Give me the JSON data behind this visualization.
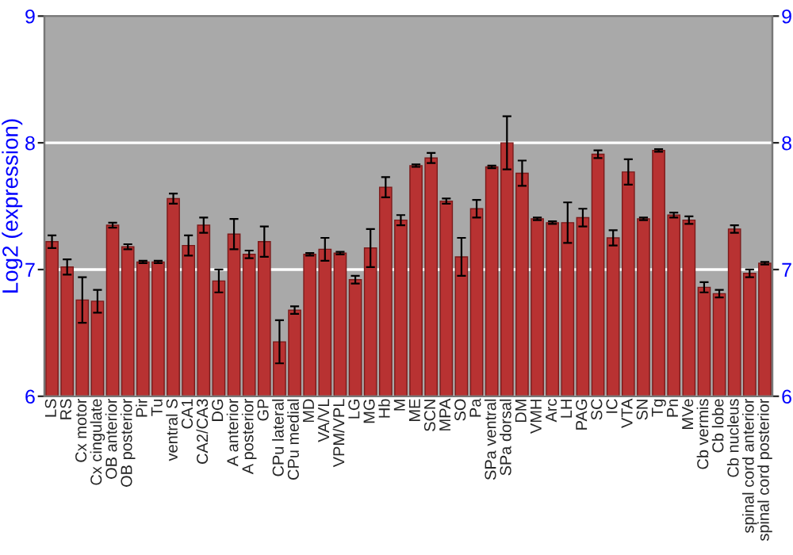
{
  "chart_data": {
    "type": "bar",
    "ylabel": "Log2 (expression)",
    "categories": [
      "LS",
      "RS",
      "Cx motor",
      "Cx cingulate",
      "OB anterior",
      "OB posterior",
      "Pir",
      "Tu",
      "ventral S",
      "CA1",
      "CA2/CA3",
      "DG",
      "A anterior",
      "A posterior",
      "GP",
      "CPu lateral",
      "CPu medial",
      "MD",
      "VA/VL",
      "VPM/VPL",
      "LG",
      "MG",
      "Hb",
      "M",
      "ME",
      "SCN",
      "MPA",
      "SO",
      "Pa",
      "SPa ventral",
      "SPa dorsal",
      "DM",
      "VMH",
      "Arc",
      "LH",
      "PAG",
      "SC",
      "IC",
      "VTA",
      "SN",
      "Tg",
      "Pn",
      "MVe",
      "Cb vermis",
      "Cb lobe",
      "Cb nucleus",
      "spinal cord anterior",
      "spinal cord posterior"
    ],
    "values": [
      7.22,
      7.02,
      6.76,
      6.75,
      7.35,
      7.18,
      7.06,
      7.06,
      7.56,
      7.19,
      7.35,
      6.91,
      7.28,
      7.12,
      7.22,
      6.43,
      6.68,
      7.12,
      7.16,
      7.13,
      6.92,
      7.17,
      7.65,
      7.39,
      7.82,
      7.88,
      7.54,
      7.1,
      7.48,
      7.81,
      8.0,
      7.76,
      7.4,
      7.37,
      7.37,
      7.41,
      7.91,
      7.25,
      7.77,
      7.4,
      7.94,
      7.43,
      7.39,
      6.86,
      6.81,
      7.32,
      6.97,
      7.05
    ],
    "errors": [
      0.05,
      0.06,
      0.18,
      0.09,
      0.02,
      0.02,
      0.01,
      0.01,
      0.04,
      0.08,
      0.06,
      0.09,
      0.12,
      0.03,
      0.12,
      0.17,
      0.03,
      0.01,
      0.09,
      0.01,
      0.03,
      0.15,
      0.08,
      0.04,
      0.01,
      0.04,
      0.02,
      0.15,
      0.07,
      0.01,
      0.21,
      0.1,
      0.01,
      0.01,
      0.16,
      0.07,
      0.03,
      0.06,
      0.1,
      0.01,
      0.01,
      0.02,
      0.03,
      0.04,
      0.03,
      0.03,
      0.03,
      0.01
    ],
    "color": "#b83232",
    "ylim": [
      6,
      9
    ],
    "yticks": [
      6,
      7,
      8,
      9
    ],
    "y2lim": [
      6,
      9
    ],
    "y2ticks": [
      6,
      7,
      8,
      9
    ],
    "grid": "y",
    "legend": false
  }
}
